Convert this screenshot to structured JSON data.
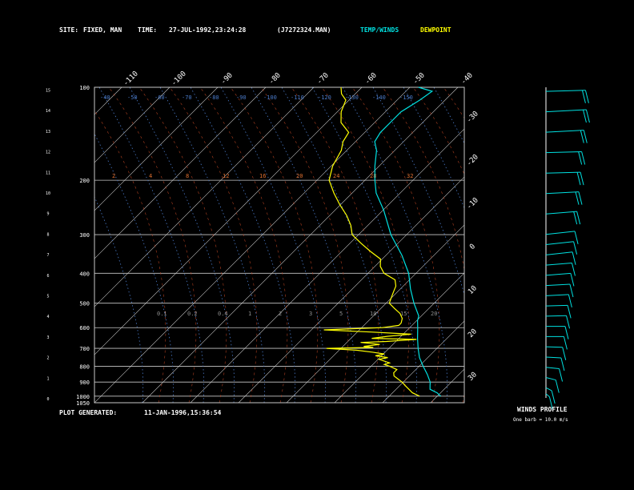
{
  "header": {
    "site_label": "SITE:",
    "site_value": "FIXED, MAN",
    "time_label": "TIME:",
    "time_value": "27-JUL-1992,23:24:28",
    "file_value": "(J7272324.MAN)",
    "temp_winds_label": "TEMP/WINDS",
    "dewpoint_label": "DEWPOINT"
  },
  "footer": {
    "plot_generated_label": "PLOT GENERATED:",
    "plot_generated_value": "11-JAN-1996,15:36:54"
  },
  "winds_panel": {
    "title": "WINDS PROFILE",
    "legend": "One barb = 10.0 m/s"
  },
  "colors": {
    "background": "#000000",
    "grid": "#c8c8c8",
    "temperature": "#00e0e0",
    "dewpoint": "#ffff00",
    "mixing_ratio": "#e07030",
    "dry_adiabat": "#b04020",
    "moist_adiabat": "#4a7ac8"
  },
  "chart_data": {
    "type": "line",
    "title": "",
    "diagram": "skew-T log-P",
    "pressure_ticks_mb": [
      100,
      200,
      300,
      400,
      500,
      600,
      700,
      800,
      900,
      1000,
      1050
    ],
    "height_ticks_km": [
      0,
      1,
      2,
      3,
      4,
      5,
      6,
      7,
      8,
      9,
      10,
      11,
      12,
      13,
      14,
      15
    ],
    "top_temperature_ticks": [
      -110,
      -100,
      -90,
      -80,
      -70,
      -60,
      -50,
      -40
    ],
    "right_temperature_ticks": [
      -30,
      -20,
      -10,
      0,
      10,
      20,
      30
    ],
    "mixing_ratio_labels": [
      2,
      4,
      8,
      12,
      16,
      20,
      24,
      28,
      32
    ],
    "low_level_labels": [
      0.1,
      0.2,
      0.4,
      1.0,
      2.0,
      3.0,
      5.0,
      10,
      15,
      20
    ],
    "adiabat_labels": [
      -40,
      -50,
      -60,
      -70,
      -80,
      -90,
      -100,
      -110,
      -120,
      -130,
      -140,
      -150
    ],
    "series": [
      {
        "name": "TEMP/WINDS",
        "color": "#00e0e0",
        "points": [
          [
            1000,
            26
          ],
          [
            975,
            24
          ],
          [
            950,
            21
          ],
          [
            925,
            20
          ],
          [
            900,
            19
          ],
          [
            850,
            16
          ],
          [
            800,
            12.5
          ],
          [
            750,
            9
          ],
          [
            700,
            6
          ],
          [
            650,
            3
          ],
          [
            600,
            0
          ],
          [
            570,
            -2
          ],
          [
            550,
            -3
          ],
          [
            500,
            -8
          ],
          [
            450,
            -13
          ],
          [
            400,
            -18
          ],
          [
            350,
            -25
          ],
          [
            300,
            -34
          ],
          [
            250,
            -43
          ],
          [
            220,
            -50
          ],
          [
            200,
            -54
          ],
          [
            180,
            -58
          ],
          [
            160,
            -62
          ],
          [
            150,
            -65
          ],
          [
            140,
            -66
          ],
          [
            130,
            -66
          ],
          [
            120,
            -66
          ],
          [
            110,
            -64
          ],
          [
            103,
            -63
          ],
          [
            100,
            -68
          ]
        ]
      },
      {
        "name": "DEWPOINT",
        "color": "#ffff00",
        "points": [
          [
            1000,
            20
          ],
          [
            975,
            17
          ],
          [
            950,
            15
          ],
          [
            925,
            13
          ],
          [
            900,
            11
          ],
          [
            880,
            9
          ],
          [
            860,
            7
          ],
          [
            840,
            6
          ],
          [
            820,
            6
          ],
          [
            800,
            3
          ],
          [
            790,
            1
          ],
          [
            780,
            2
          ],
          [
            760,
            -2
          ],
          [
            750,
            0
          ],
          [
            740,
            -4
          ],
          [
            730,
            -2
          ],
          [
            720,
            -6
          ],
          [
            710,
            -11
          ],
          [
            700,
            -20
          ],
          [
            695,
            -7
          ],
          [
            690,
            -10
          ],
          [
            680,
            -6
          ],
          [
            670,
            -12
          ],
          [
            665,
            -5
          ],
          [
            655,
            3
          ],
          [
            650,
            -10
          ],
          [
            640,
            -6
          ],
          [
            630,
            0
          ],
          [
            620,
            -12
          ],
          [
            610,
            -26
          ],
          [
            600,
            -10
          ],
          [
            590,
            -6
          ],
          [
            580,
            -6
          ],
          [
            560,
            -7
          ],
          [
            540,
            -9
          ],
          [
            520,
            -12
          ],
          [
            500,
            -15
          ],
          [
            480,
            -16
          ],
          [
            460,
            -17
          ],
          [
            440,
            -18
          ],
          [
            420,
            -20
          ],
          [
            400,
            -25
          ],
          [
            380,
            -28
          ],
          [
            360,
            -30
          ],
          [
            340,
            -35
          ],
          [
            320,
            -40
          ],
          [
            300,
            -45
          ],
          [
            280,
            -48
          ],
          [
            260,
            -52
          ],
          [
            240,
            -57
          ],
          [
            220,
            -62
          ],
          [
            200,
            -67
          ],
          [
            180,
            -70
          ],
          [
            160,
            -72
          ],
          [
            150,
            -74
          ],
          [
            140,
            -75
          ],
          [
            130,
            -80
          ],
          [
            120,
            -83
          ],
          [
            110,
            -85
          ],
          [
            105,
            -88
          ],
          [
            100,
            -90
          ]
        ]
      }
    ],
    "winds_profile": [
      {
        "height_km": 0.2,
        "dir_deg": 200,
        "speed_ms": 3
      },
      {
        "height_km": 0.5,
        "dir_deg": 210,
        "speed_ms": 4
      },
      {
        "height_km": 1.0,
        "dir_deg": 230,
        "speed_ms": 5
      },
      {
        "height_km": 1.5,
        "dir_deg": 250,
        "speed_ms": 6
      },
      {
        "height_km": 2.0,
        "dir_deg": 260,
        "speed_ms": 7
      },
      {
        "height_km": 2.5,
        "dir_deg": 265,
        "speed_ms": 8
      },
      {
        "height_km": 3.0,
        "dir_deg": 270,
        "speed_ms": 9
      },
      {
        "height_km": 3.5,
        "dir_deg": 270,
        "speed_ms": 10
      },
      {
        "height_km": 4.0,
        "dir_deg": 275,
        "speed_ms": 11
      },
      {
        "height_km": 4.5,
        "dir_deg": 275,
        "speed_ms": 12
      },
      {
        "height_km": 5.0,
        "dir_deg": 280,
        "speed_ms": 13
      },
      {
        "height_km": 5.5,
        "dir_deg": 280,
        "speed_ms": 14
      },
      {
        "height_km": 6.0,
        "dir_deg": 285,
        "speed_ms": 15
      },
      {
        "height_km": 6.5,
        "dir_deg": 285,
        "speed_ms": 16
      },
      {
        "height_km": 7.0,
        "dir_deg": 290,
        "speed_ms": 17
      },
      {
        "height_km": 7.5,
        "dir_deg": 290,
        "speed_ms": 18
      },
      {
        "height_km": 8.0,
        "dir_deg": 290,
        "speed_ms": 19
      },
      {
        "height_km": 9.0,
        "dir_deg": 285,
        "speed_ms": 20
      },
      {
        "height_km": 10.0,
        "dir_deg": 280,
        "speed_ms": 21
      },
      {
        "height_km": 11.0,
        "dir_deg": 275,
        "speed_ms": 22
      },
      {
        "height_km": 12.0,
        "dir_deg": 275,
        "speed_ms": 23
      },
      {
        "height_km": 13.0,
        "dir_deg": 280,
        "speed_ms": 25
      },
      {
        "height_km": 14.0,
        "dir_deg": 280,
        "speed_ms": 27
      },
      {
        "height_km": 15.0,
        "dir_deg": 275,
        "speed_ms": 26
      }
    ]
  }
}
